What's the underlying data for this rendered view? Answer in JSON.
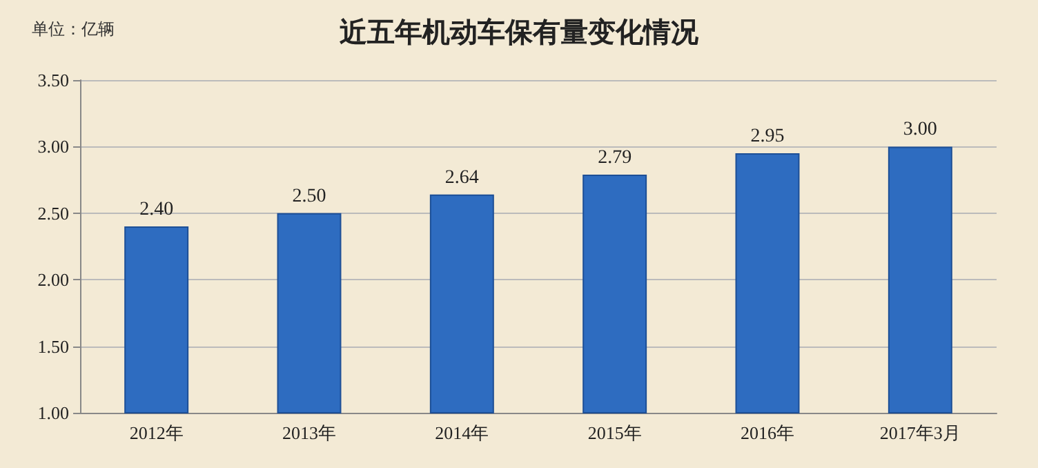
{
  "chart_data": {
    "type": "bar",
    "title": "近五年机动车保有量变化情况",
    "ylabel": "单位：亿辆",
    "categories": [
      "2012年",
      "2013年",
      "2014年",
      "2015年",
      "2016年",
      "2017年3月"
    ],
    "values": [
      2.4,
      2.5,
      2.64,
      2.79,
      2.95,
      3.0
    ],
    "value_labels": [
      "2.40",
      "2.50",
      "2.64",
      "2.79",
      "2.95",
      "3.00"
    ],
    "color": "#2e6cc0",
    "ylim": [
      1,
      3.5
    ],
    "yticks": [
      {
        "value": 1,
        "label": "1.00"
      },
      {
        "value": 1.5,
        "label": "1.50"
      },
      {
        "value": 2,
        "label": "2.00"
      },
      {
        "value": 2.5,
        "label": "2.50"
      },
      {
        "value": 3,
        "label": "3.00"
      },
      {
        "value": 3.5,
        "label": "3.50"
      }
    ],
    "grid": "y"
  }
}
